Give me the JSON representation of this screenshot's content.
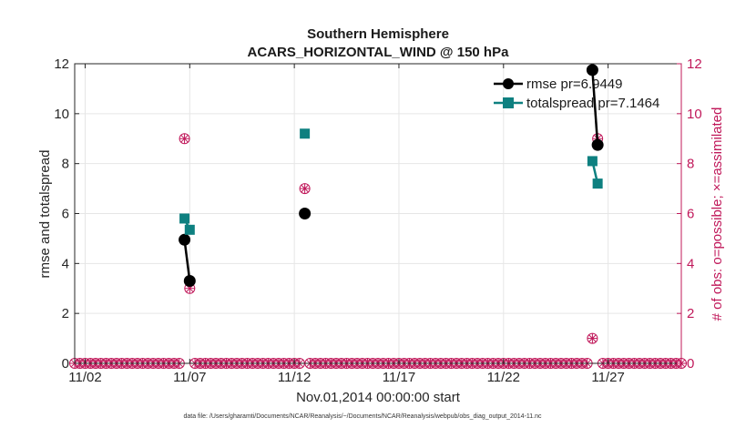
{
  "colors": {
    "rmse": "#000000",
    "spread": "#0e8080",
    "obs": "#c0185a",
    "grid": "#e6e6e6",
    "axis": "#262626"
  },
  "chart_data": {
    "type": "line",
    "title": "Southern Hemisphere",
    "subtitle": "ACARS_HORIZONTAL_WIND @ 150 hPa",
    "xlabel": "Nov.01,2014 00:00:00 start",
    "ylabel": "rmse and totalspread",
    "ylabel_right": "# of obs: o=possible; ×=assimilated",
    "footnote": "data file: /Users/gharamti/Documents/NCAR/Reanalysis/~/Documents/NCAR/Reanalysis/webpub/obs_diag_output_2014-11.nc",
    "xlim": [
      1.5,
      30.5
    ],
    "ylim": [
      0,
      12
    ],
    "ylim_right": [
      0,
      12
    ],
    "x_ticks": [
      2,
      7,
      12,
      17,
      22,
      27
    ],
    "x_tick_labels": [
      "11/02",
      "11/07",
      "11/12",
      "11/17",
      "11/22",
      "11/27"
    ],
    "y_ticks": [
      0,
      2,
      4,
      6,
      8,
      10,
      12
    ],
    "y_tick_labels": [
      "0",
      "2",
      "4",
      "6",
      "8",
      "10",
      "12"
    ],
    "y_ticks_right": [
      0,
      2,
      4,
      6,
      8,
      10,
      12
    ],
    "y_tick_labels_right": [
      "0",
      "2",
      "4",
      "6",
      "8",
      "10",
      "12"
    ],
    "legend_position": "top-right",
    "series": [
      {
        "name": "rmse pr=6.9449",
        "segments": [
          [
            [
              6.75,
              4.95
            ],
            [
              7.0,
              3.3
            ]
          ],
          [
            [
              12.5,
              6.0
            ]
          ],
          [
            [
              26.25,
              11.75
            ],
            [
              26.5,
              8.75
            ]
          ]
        ]
      },
      {
        "name": "totalspread pr=7.1464",
        "segments": [
          [
            [
              6.75,
              5.8
            ],
            [
              7.0,
              5.35
            ]
          ],
          [
            [
              12.5,
              9.2
            ]
          ],
          [
            [
              26.25,
              8.1
            ],
            [
              26.5,
              7.2
            ]
          ]
        ]
      }
    ],
    "obs_days_start": 1.5,
    "obs_days_end": 30.5,
    "obs_step": 0.25,
    "obs_nonzero": [
      {
        "x": 6.75,
        "possible": 9,
        "assimilated": 9
      },
      {
        "x": 7.0,
        "possible": 3,
        "assimilated": 3
      },
      {
        "x": 12.5,
        "possible": 7,
        "assimilated": 7
      },
      {
        "x": 26.25,
        "possible": 1,
        "assimilated": 1
      },
      {
        "x": 26.5,
        "possible": 9,
        "assimilated": 9
      }
    ]
  }
}
